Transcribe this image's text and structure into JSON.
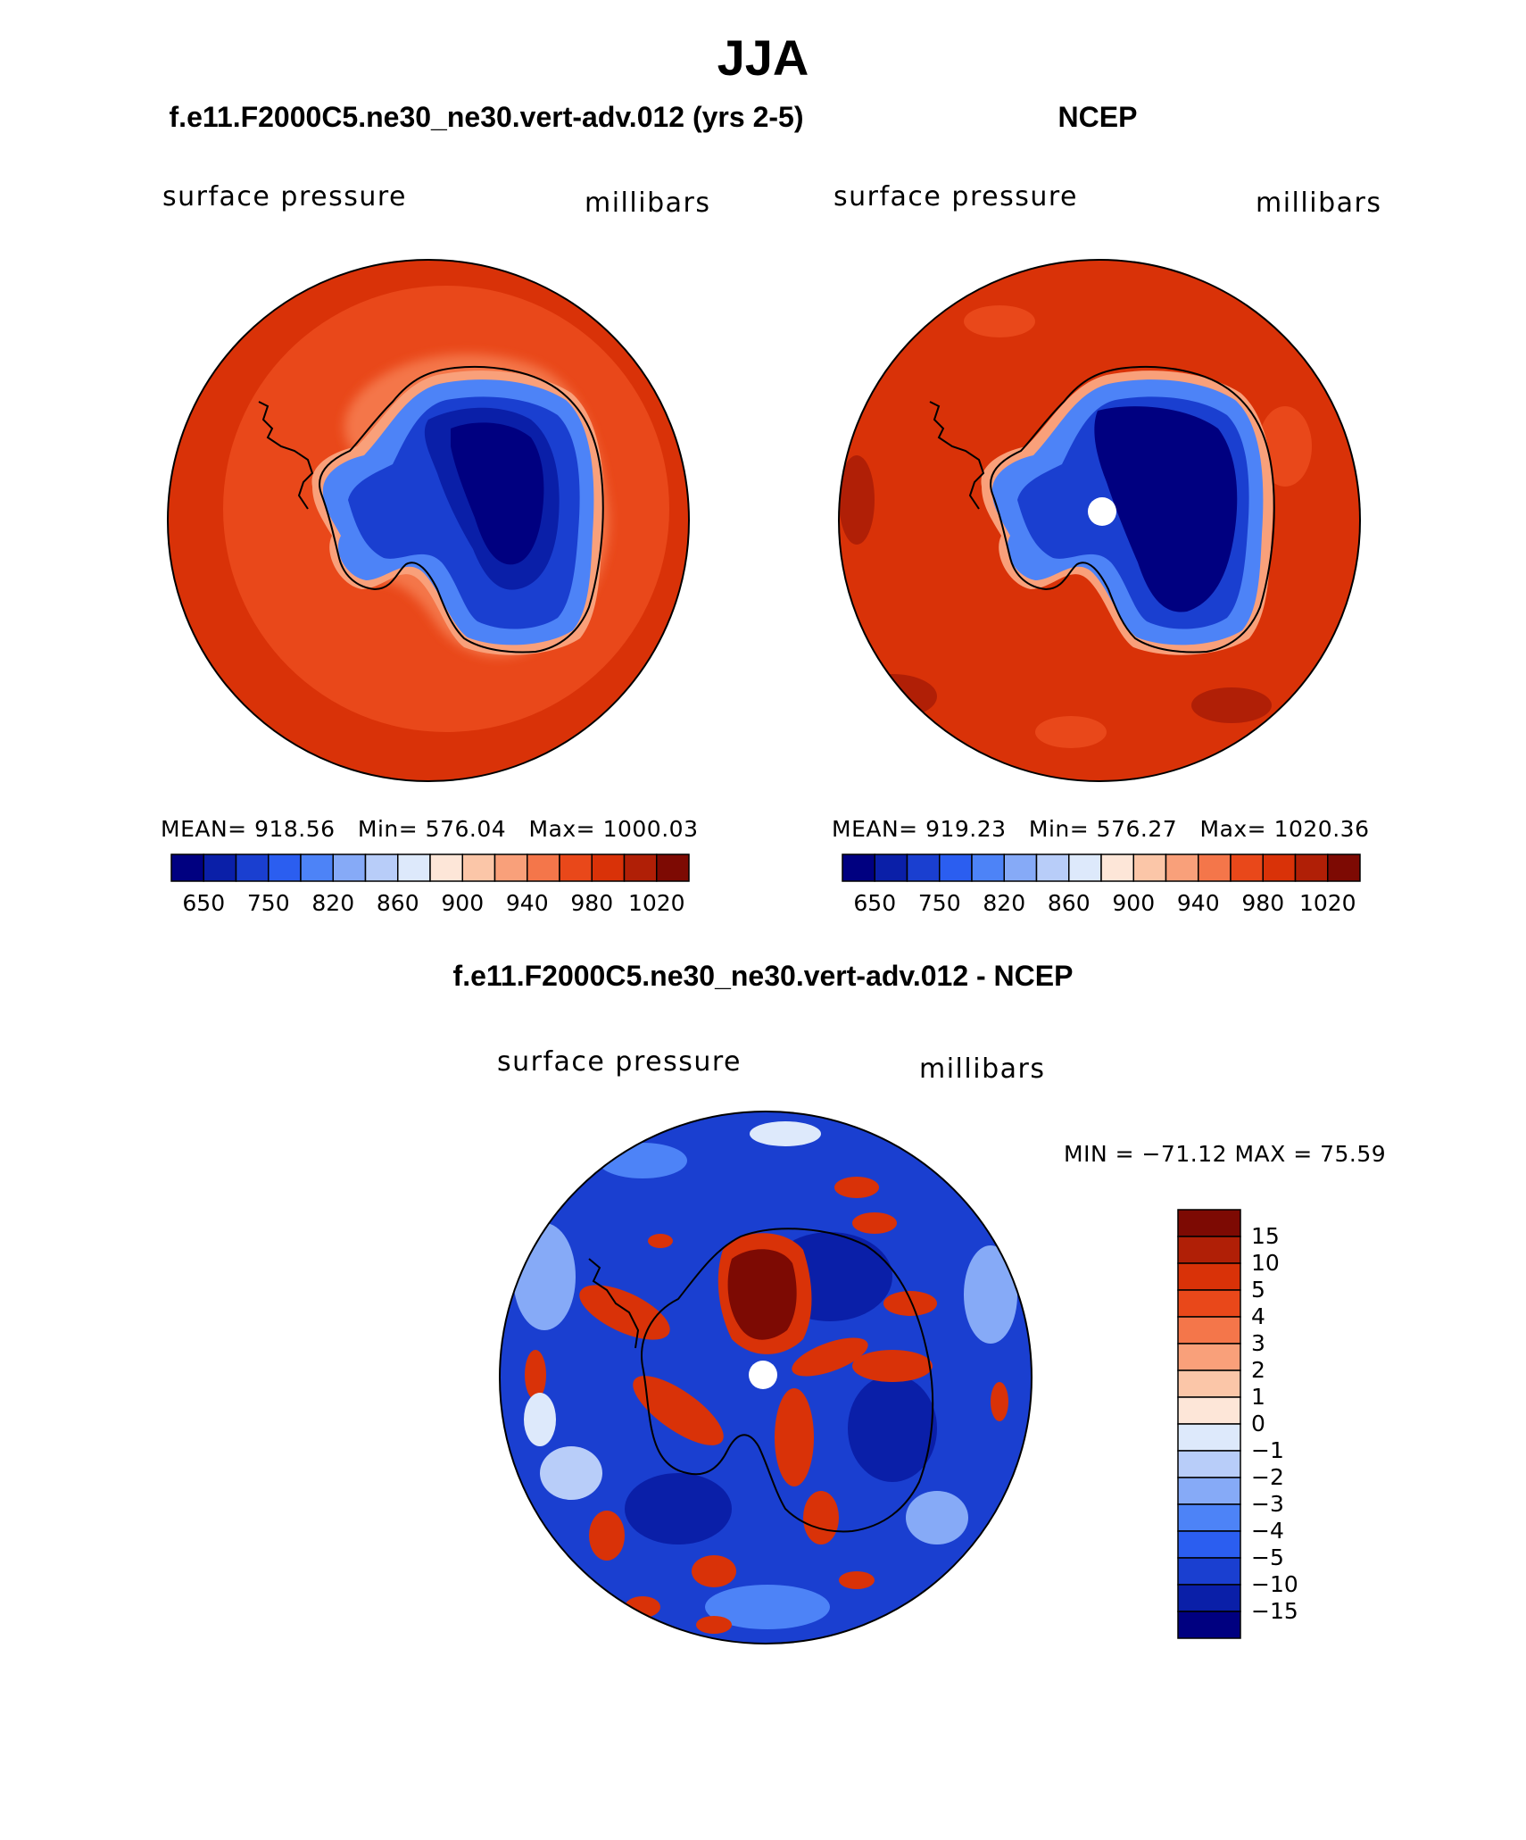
{
  "title": "JJA",
  "panels": {
    "left": {
      "title": "f.e11.F2000C5.ne30_ne30.vert-adv.012 (yrs 2-5)",
      "variable": "surface pressure",
      "units": "millibars",
      "mean_label": "MEAN=",
      "mean": "918.56",
      "min_label": "Min=",
      "min": "576.04",
      "max_label": "Max=",
      "max": "1000.03"
    },
    "right": {
      "title": "NCEP",
      "variable": "surface pressure",
      "units": "millibars",
      "mean_label": "MEAN=",
      "mean": "919.23",
      "min_label": "Min=",
      "min": "576.27",
      "max_label": "Max=",
      "max": "1020.36"
    },
    "diff": {
      "title": "f.e11.F2000C5.ne30_ne30.vert-adv.012 - NCEP",
      "variable": "surface pressure",
      "units": "millibars",
      "minmax": "MIN = −71.12 MAX =  75.59"
    }
  },
  "colorbar_h": {
    "ticks": [
      "650",
      "750",
      "820",
      "860",
      "900",
      "940",
      "980",
      "1020"
    ],
    "colors": [
      "#000080",
      "#0a1fa8",
      "#1a3fd0",
      "#2b5ef0",
      "#4d83f7",
      "#86aaf7",
      "#b8cdf9",
      "#dde9fb",
      "#fde6d8",
      "#fbc6a8",
      "#f9a07a",
      "#f4764a",
      "#e9481a",
      "#d93208",
      "#b01f06",
      "#7d0a03"
    ]
  },
  "colorbar_v": {
    "ticks": [
      "15",
      "10",
      "5",
      "4",
      "3",
      "2",
      "1",
      "0",
      "−1",
      "−2",
      "−3",
      "−4",
      "−5",
      "−10",
      "−15"
    ],
    "colors": [
      "#7d0a03",
      "#b01f06",
      "#d93208",
      "#e9481a",
      "#f4764a",
      "#f9a07a",
      "#fbc6a8",
      "#fde6d8",
      "#dde9fb",
      "#b8cdf9",
      "#86aaf7",
      "#4d83f7",
      "#2b5ef0",
      "#1a3fd0",
      "#0a1fa8",
      "#000080"
    ]
  },
  "colors": {
    "ocean_low": "#d93208",
    "ocean_mid": "#e9481a",
    "ice_deep": "#000080",
    "ice_mid": "#1a3fd0",
    "diff_bg": "#1a3fd0",
    "diff_red": "#d93208",
    "diff_darkred": "#7d0a03"
  }
}
